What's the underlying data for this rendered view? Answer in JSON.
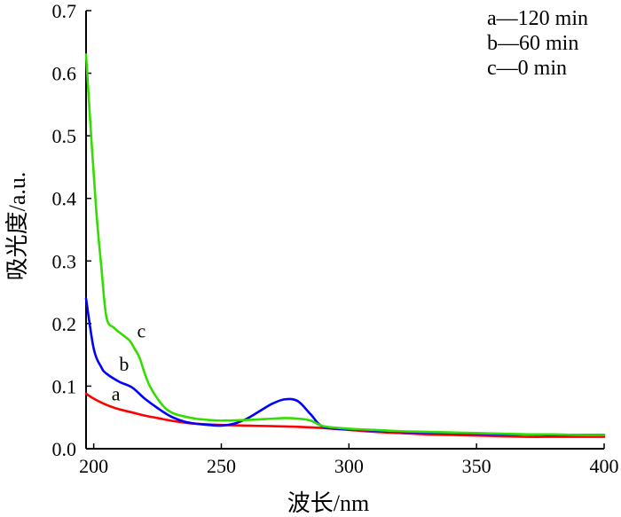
{
  "chart_data": {
    "type": "line",
    "xlabel": "波长/nm",
    "ylabel": "吸光度/a.u.",
    "xlim": [
      197,
      400
    ],
    "ylim": [
      0,
      0.7
    ],
    "xticks": [
      200,
      250,
      300,
      350,
      400
    ],
    "yticks": [
      0.0,
      0.1,
      0.2,
      0.3,
      0.4,
      0.5,
      0.6,
      0.7
    ],
    "xtick_labels": [
      "200",
      "250",
      "300",
      "350",
      "400"
    ],
    "ytick_labels": [
      "0.0",
      "0.1",
      "0.2",
      "0.3",
      "0.4",
      "0.5",
      "0.6",
      "0.7"
    ],
    "legend": [
      "a—120 min",
      "b—60 min",
      "c—0 min"
    ],
    "legend_position": "top-right",
    "grid": false,
    "series": [
      {
        "name": "a",
        "color": "#ff0000",
        "x": [
          197,
          200,
          205,
          210,
          215,
          220,
          225,
          230,
          235,
          240,
          250,
          260,
          270,
          280,
          290,
          300,
          310,
          320,
          330,
          340,
          350,
          360,
          370,
          380,
          390,
          400
        ],
        "y": [
          0.088,
          0.08,
          0.07,
          0.063,
          0.058,
          0.053,
          0.049,
          0.045,
          0.042,
          0.04,
          0.038,
          0.037,
          0.036,
          0.035,
          0.033,
          0.03,
          0.027,
          0.025,
          0.023,
          0.022,
          0.021,
          0.02,
          0.019,
          0.019,
          0.019,
          0.019
        ]
      },
      {
        "name": "b",
        "color": "#0000ff",
        "x": [
          197,
          200,
          203,
          205,
          210,
          215,
          220,
          225,
          230,
          235,
          240,
          245,
          250,
          255,
          260,
          265,
          270,
          275,
          280,
          285,
          290,
          300,
          310,
          320,
          330,
          340,
          350,
          360,
          370,
          380,
          390,
          400
        ],
        "y": [
          0.24,
          0.16,
          0.13,
          0.12,
          0.107,
          0.098,
          0.08,
          0.065,
          0.052,
          0.044,
          0.04,
          0.038,
          0.037,
          0.04,
          0.048,
          0.06,
          0.072,
          0.079,
          0.076,
          0.055,
          0.035,
          0.031,
          0.029,
          0.027,
          0.026,
          0.025,
          0.024,
          0.023,
          0.023,
          0.022,
          0.022,
          0.022
        ]
      },
      {
        "name": "c",
        "color": "#33dd00",
        "x": [
          197,
          199,
          201,
          203,
          205,
          208,
          211,
          214,
          216,
          218,
          220,
          222,
          225,
          228,
          231,
          235,
          240,
          245,
          250,
          260,
          270,
          275,
          280,
          285,
          290,
          300,
          310,
          320,
          330,
          340,
          350,
          360,
          370,
          380,
          390,
          400
        ],
        "y": [
          0.63,
          0.5,
          0.38,
          0.29,
          0.21,
          0.193,
          0.183,
          0.173,
          0.16,
          0.145,
          0.12,
          0.1,
          0.08,
          0.065,
          0.057,
          0.052,
          0.048,
          0.046,
          0.045,
          0.046,
          0.048,
          0.049,
          0.048,
          0.045,
          0.036,
          0.032,
          0.03,
          0.028,
          0.027,
          0.026,
          0.025,
          0.024,
          0.023,
          0.023,
          0.022,
          0.022
        ]
      }
    ],
    "curve_labels": [
      {
        "text": "a",
        "x": 207,
        "y": 0.077
      },
      {
        "text": "b",
        "x": 210,
        "y": 0.125
      },
      {
        "text": "c",
        "x": 217,
        "y": 0.178
      }
    ]
  }
}
